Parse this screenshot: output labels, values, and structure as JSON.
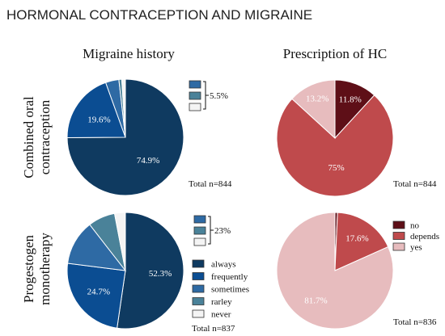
{
  "page_title": "HORMONAL CONTRACEPTION AND MIGRAINE",
  "colors": {
    "always": "#0f3a60",
    "frequently": "#0b4d92",
    "sometimes": "#2e6aa4",
    "rarley": "#4a8299",
    "never": "#f4f4f4",
    "no": "#5e0f17",
    "depends": "#bf4a4c",
    "yes": "#e7bcbe",
    "stroke": "#333333"
  },
  "chart_data": {
    "type": "pie",
    "column_titles": [
      "Migraine history",
      "Prescription of HC"
    ],
    "row_labels": [
      [
        "Combined oral",
        "contraception"
      ],
      [
        "Progestogen",
        "monotherapy"
      ]
    ],
    "history_legend": [
      {
        "label": "always",
        "color_key": "always"
      },
      {
        "label": "frequently",
        "color_key": "frequently"
      },
      {
        "label": "sometimes",
        "color_key": "sometimes"
      },
      {
        "label": "rarley",
        "color_key": "rarley"
      },
      {
        "label": "never",
        "color_key": "never"
      }
    ],
    "prescription_legend": [
      {
        "label": "no",
        "color_key": "no"
      },
      {
        "label": "depends",
        "color_key": "depends"
      },
      {
        "label": "yes",
        "color_key": "yes"
      }
    ],
    "charts": [
      {
        "panel": "Combined oral contraception - Migraine history",
        "total_label": "Total n=844",
        "slices": [
          {
            "category": "always",
            "value": 74.9,
            "label": "74.9%"
          },
          {
            "category": "frequently",
            "value": 19.6,
            "label": "19.6%"
          },
          {
            "category": "sometimes",
            "value": 3.7,
            "label": ""
          },
          {
            "category": "rarley",
            "value": 0.8,
            "label": ""
          },
          {
            "category": "never",
            "value": 1.0,
            "label": ""
          }
        ],
        "bracket_label": "5.5%"
      },
      {
        "panel": "Combined oral contraception - Prescription of HC",
        "total_label": "Total n=844",
        "slices": [
          {
            "category": "no",
            "value": 11.8,
            "label": "11.8%"
          },
          {
            "category": "depends",
            "value": 75,
            "label": "75%"
          },
          {
            "category": "yes",
            "value": 13.2,
            "label": "13.2%"
          }
        ]
      },
      {
        "panel": "Progestogen monotherapy - Migraine history",
        "total_label": "Total n=837",
        "slices": [
          {
            "category": "always",
            "value": 52.3,
            "label": "52.3%"
          },
          {
            "category": "frequently",
            "value": 24.7,
            "label": "24.7%"
          },
          {
            "category": "sometimes",
            "value": 12.5,
            "label": ""
          },
          {
            "category": "rarley",
            "value": 7.5,
            "label": ""
          },
          {
            "category": "never",
            "value": 3.0,
            "label": ""
          }
        ],
        "bracket_label": "23%"
      },
      {
        "panel": "Progestogen monotherapy - Prescription of HC",
        "total_label": "Total n=836",
        "slices": [
          {
            "category": "no",
            "value": 0.7,
            "label": ""
          },
          {
            "category": "depends",
            "value": 17.6,
            "label": "17.6%"
          },
          {
            "category": "yes",
            "value": 81.7,
            "label": "81.7%"
          }
        ]
      }
    ]
  }
}
